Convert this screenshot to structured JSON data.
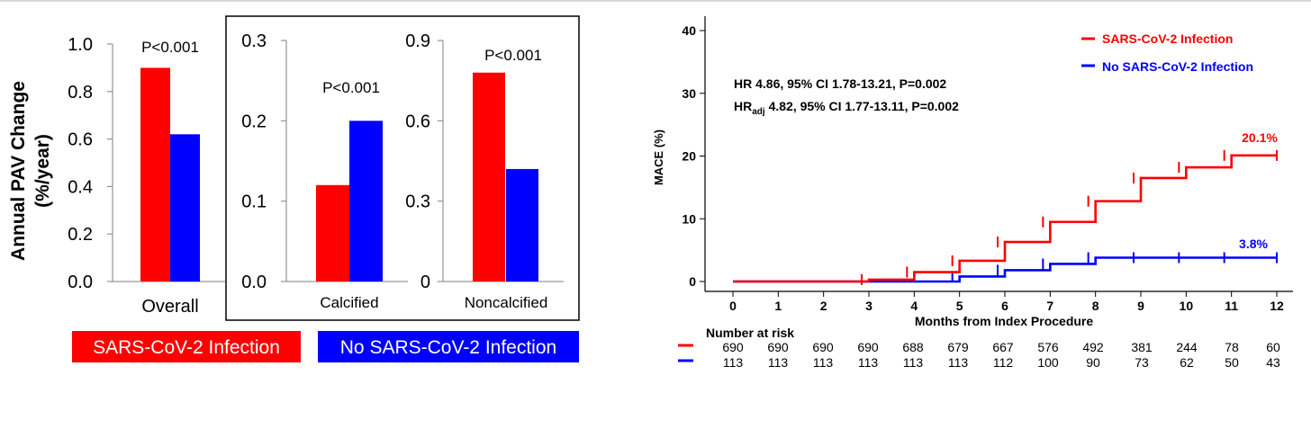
{
  "colors": {
    "sars": "#ff0000",
    "nosars": "#0000ff",
    "axis": "#000000",
    "border": "#000000"
  },
  "left_panel": {
    "ylabel_line1": "Annual PAV Change",
    "ylabel_line2": "(%/year)",
    "legend": {
      "sars": "SARS-CoV-2 Infection",
      "nosars": "No SARS-CoV-2 Infection"
    }
  },
  "right_panel": {
    "hr_line1": "HR 4.86, 95%  CI 1.78-13.21, P=0.002",
    "hr_line2_prefix": "HR",
    "hr_line2_sub": "adj",
    "hr_line2_rest": " 4.82, 95%  CI 1.77-13.11, P=0.002",
    "legend": {
      "sars": "SARS-CoV-2 Infection",
      "nosars": "No SARS-CoV-2 Infection"
    },
    "risk_title": "Number at risk",
    "risk_sars": [
      "690",
      "690",
      "690",
      "690",
      "688",
      "679",
      "667",
      "576",
      "492",
      "381",
      "244",
      "78",
      "60"
    ],
    "risk_nosars": [
      "113",
      "113",
      "113",
      "113",
      "113",
      "113",
      "112",
      "100",
      "90",
      "73",
      "62",
      "50",
      "43"
    ]
  },
  "chart_data": [
    {
      "type": "bar",
      "title": "",
      "categories": [
        "Overall"
      ],
      "series": [
        {
          "name": "SARS-CoV-2 Infection",
          "values": [
            0.9
          ]
        },
        {
          "name": "No SARS-CoV-2 Infection",
          "values": [
            0.62
          ]
        }
      ],
      "ylim": [
        0,
        1.0
      ],
      "yticks": [
        "0.0",
        "0.2",
        "0.4",
        "0.6",
        "0.8",
        "1.0"
      ],
      "annotation": "P<0.001",
      "xlabel": "Overall",
      "ylabel": "Annual PAV Change (%/year)"
    },
    {
      "type": "bar",
      "title": "",
      "categories": [
        "Calcified"
      ],
      "series": [
        {
          "name": "SARS-CoV-2 Infection",
          "values": [
            0.12
          ]
        },
        {
          "name": "No SARS-CoV-2 Infection",
          "values": [
            0.2
          ]
        }
      ],
      "ylim": [
        0,
        0.3
      ],
      "yticks": [
        "0.0",
        "0.1",
        "0.2",
        "0.3"
      ],
      "annotation": "P<0.001",
      "xlabel": "Calcified",
      "ylabel": ""
    },
    {
      "type": "bar",
      "title": "",
      "categories": [
        "Noncalcified"
      ],
      "series": [
        {
          "name": "SARS-CoV-2 Infection",
          "values": [
            0.78
          ]
        },
        {
          "name": "No SARS-CoV-2 Infection",
          "values": [
            0.42
          ]
        }
      ],
      "ylim": [
        0,
        0.9
      ],
      "yticks": [
        "0",
        "0.3",
        "0.6",
        "0.9"
      ],
      "annotation": "P<0.001",
      "xlabel": "Noncalcified",
      "ylabel": ""
    },
    {
      "type": "line",
      "title": "",
      "xlabel": "Months from Index Procedure",
      "ylabel": "MACE (%)",
      "xlim": [
        0,
        12
      ],
      "ylim": [
        0,
        40
      ],
      "xticks": [
        "0",
        "1",
        "2",
        "3",
        "4",
        "5",
        "6",
        "7",
        "8",
        "9",
        "10",
        "11",
        "12"
      ],
      "yticks": [
        "0",
        "10",
        "20",
        "30",
        "40"
      ],
      "series": [
        {
          "name": "SARS-CoV-2 Infection",
          "end_label": "20.1%",
          "x": [
            0,
            3,
            4,
            5,
            6,
            7,
            8,
            9,
            10,
            11,
            12
          ],
          "y": [
            0,
            0.3,
            1.5,
            3.3,
            6.3,
            9.5,
            12.8,
            16.5,
            18.2,
            20.1,
            20.1
          ]
        },
        {
          "name": "No SARS-CoV-2 Infection",
          "end_label": "3.8%",
          "x": [
            0,
            5,
            6,
            7,
            8,
            9,
            10,
            11,
            12
          ],
          "y": [
            0,
            0.8,
            1.8,
            2.8,
            3.8,
            3.8,
            3.8,
            3.8,
            3.8
          ]
        }
      ]
    }
  ]
}
